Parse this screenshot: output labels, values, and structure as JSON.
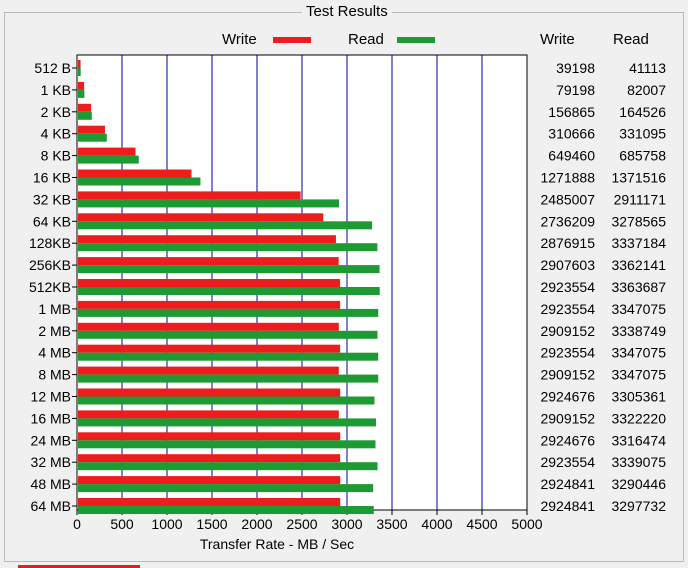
{
  "window": {
    "group_title": "Test Results"
  },
  "legend": {
    "write_label": "Write",
    "read_label": "Read",
    "write_color": "#ee1c1c",
    "read_color": "#1e9a32"
  },
  "table": {
    "write_header": "Write",
    "read_header": "Read"
  },
  "chart_data": {
    "type": "bar",
    "orientation": "horizontal",
    "xlabel": "Transfer Rate - MB / Sec",
    "xlim": [
      0,
      5000
    ],
    "xticks": [
      0,
      500,
      1000,
      1500,
      2000,
      2500,
      3000,
      3500,
      4000,
      4500,
      5000
    ],
    "grid": "vertical",
    "categories": [
      "512 B",
      "1 KB",
      "2 KB",
      "4 KB",
      "8 KB",
      "16 KB",
      "32 KB",
      "64 KB",
      "128KB",
      "256KB",
      "512KB",
      "1 MB",
      "2 MB",
      "4 MB",
      "8 MB",
      "12 MB",
      "16 MB",
      "24 MB",
      "32 MB",
      "48 MB",
      "64 MB"
    ],
    "series": [
      {
        "name": "Write",
        "color": "#ee1c1c",
        "values": [
          39198,
          79198,
          156865,
          310666,
          649460,
          1271888,
          2485007,
          2736209,
          2876915,
          2907603,
          2923554,
          2923554,
          2909152,
          2923554,
          2909152,
          2924676,
          2909152,
          2924676,
          2923554,
          2924841,
          2924841
        ]
      },
      {
        "name": "Read",
        "color": "#1e9a32",
        "values": [
          41113,
          82007,
          164526,
          331095,
          685758,
          1371516,
          2911171,
          3278565,
          3337184,
          3362141,
          3363687,
          3347075,
          3338749,
          3347075,
          3347075,
          3305361,
          3322220,
          3316474,
          3339075,
          3290446,
          3297732
        ]
      }
    ],
    "value_unit_divisor": 1000
  }
}
